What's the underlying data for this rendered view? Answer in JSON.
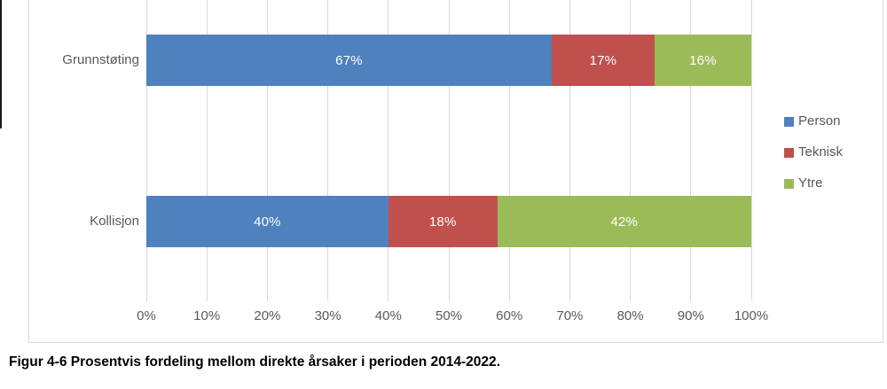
{
  "caption": "Figur 4-6 Prosentvis fordeling mellom direkte årsaker i perioden 2014-2022.",
  "chart_data": {
    "type": "bar",
    "orientation": "horizontal",
    "stacked": true,
    "title": "",
    "xlabel": "",
    "ylabel": "",
    "categories": [
      "Grunnstøting",
      "Kollisjon"
    ],
    "series": [
      {
        "name": "Person",
        "color": "#4E81BD",
        "values": [
          67,
          40
        ]
      },
      {
        "name": "Teknisk",
        "color": "#C0504D",
        "values": [
          17,
          18
        ]
      },
      {
        "name": "Ytre",
        "color": "#9BBB59",
        "values": [
          16,
          42
        ]
      }
    ],
    "data_labels": [
      [
        "67%",
        "17%",
        "16%"
      ],
      [
        "40%",
        "18%",
        "42%"
      ]
    ],
    "x_ticks": [
      "0%",
      "10%",
      "20%",
      "30%",
      "40%",
      "50%",
      "60%",
      "70%",
      "80%",
      "90%",
      "100%"
    ],
    "xlim": [
      0,
      100
    ],
    "grid": true,
    "legend_position": "right",
    "text_color": "#595959",
    "gridline_color": "#d9d9d9"
  }
}
